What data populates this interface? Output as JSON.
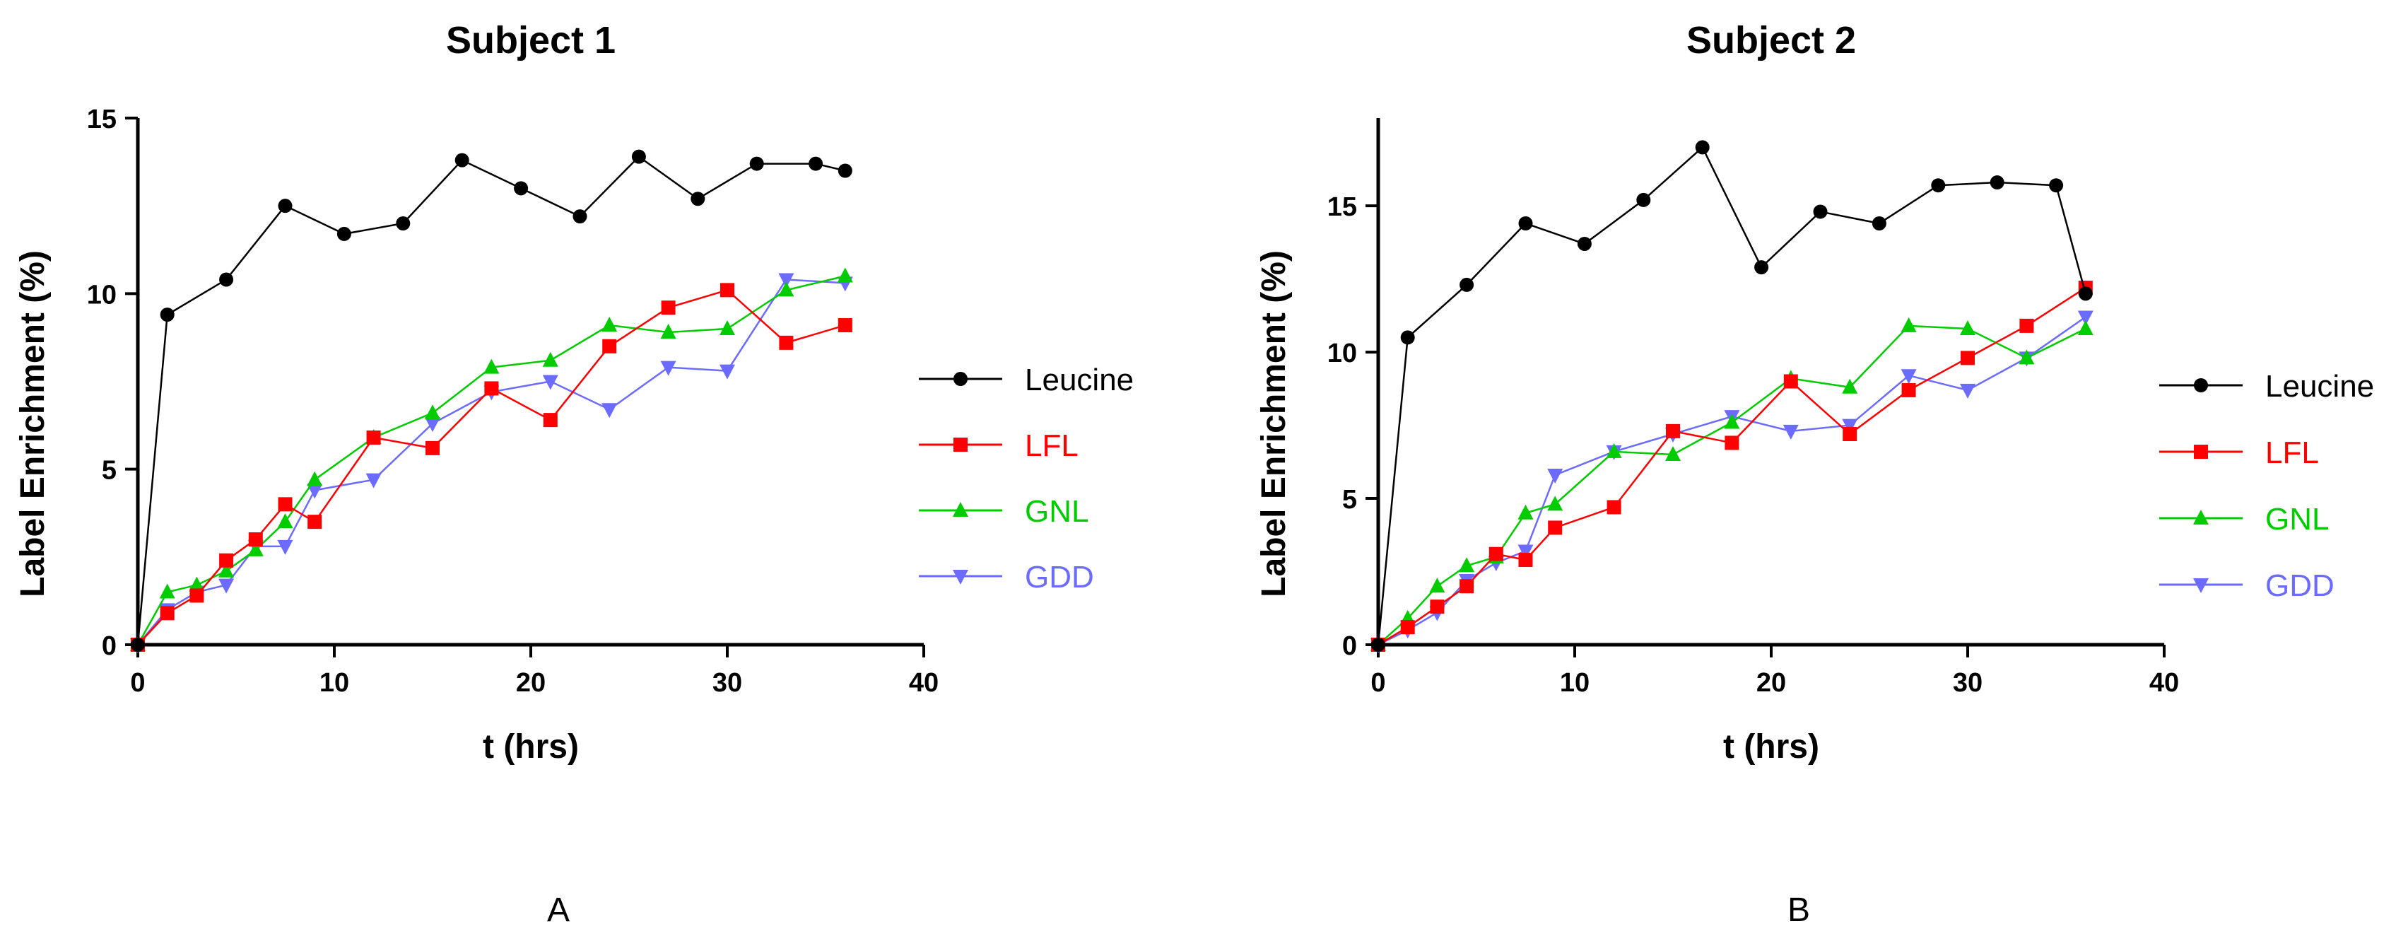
{
  "chart_data": [
    {
      "type": "line",
      "title": "Subject 1",
      "panel_label": "A",
      "xlabel": "t (hrs)",
      "ylabel": "Label Enrichment (%)",
      "xlim": [
        0,
        40
      ],
      "ylim": [
        0,
        15
      ],
      "xticks": [
        0,
        10,
        20,
        30,
        40
      ],
      "yticks": [
        0,
        5,
        10,
        15
      ],
      "xtick_labels": [
        "0",
        "10",
        "20",
        "30",
        "40"
      ],
      "ytick_labels": [
        "0",
        "5",
        "10",
        "15"
      ],
      "legend_position": "right",
      "series": [
        {
          "name": "Leucine",
          "color": "#000000",
          "marker": "circle",
          "x": [
            0,
            1.5,
            4.5,
            7.5,
            10.5,
            13.5,
            16.5,
            19.5,
            22.5,
            25.5,
            28.5,
            31.5,
            34.5,
            36
          ],
          "y": [
            0,
            9.4,
            10.4,
            12.5,
            11.7,
            12.0,
            13.8,
            13.0,
            12.2,
            13.9,
            12.7,
            13.7,
            13.7,
            13.5
          ]
        },
        {
          "name": "LFL",
          "color": "#ff0000",
          "marker": "square",
          "x": [
            0,
            1.5,
            3,
            4.5,
            6,
            7.5,
            9,
            12,
            15,
            18,
            21,
            24,
            27,
            30,
            33,
            36
          ],
          "y": [
            0,
            0.9,
            1.4,
            2.4,
            3.0,
            4.0,
            3.5,
            5.9,
            5.6,
            7.3,
            6.4,
            8.5,
            9.6,
            10.1,
            8.6,
            9.1
          ]
        },
        {
          "name": "GNL",
          "color": "#00cc00",
          "marker": "triangle-up",
          "x": [
            0,
            1.5,
            3,
            4.5,
            6,
            7.5,
            9,
            12,
            15,
            18,
            21,
            24,
            27,
            30,
            33,
            36
          ],
          "y": [
            0,
            1.5,
            1.7,
            2.1,
            2.7,
            3.5,
            4.7,
            5.9,
            6.6,
            7.9,
            8.1,
            9.1,
            8.9,
            9.0,
            10.1,
            10.5
          ]
        },
        {
          "name": "GDD",
          "color": "#6b6bff",
          "marker": "triangle-down",
          "x": [
            0,
            1.5,
            3,
            4.5,
            6,
            7.5,
            9,
            12,
            15,
            18,
            21,
            24,
            27,
            30,
            33,
            36
          ],
          "y": [
            0,
            1.0,
            1.5,
            1.7,
            2.8,
            2.8,
            4.4,
            4.7,
            6.3,
            7.2,
            7.5,
            6.7,
            7.9,
            7.8,
            10.4,
            10.3
          ]
        }
      ]
    },
    {
      "type": "line",
      "title": "Subject 2",
      "panel_label": "B",
      "xlabel": "t (hrs)",
      "ylabel": "Label Enrichment (%)",
      "xlim": [
        0,
        40
      ],
      "ylim": [
        0,
        18
      ],
      "xticks": [
        0,
        10,
        20,
        30,
        40
      ],
      "yticks": [
        0,
        5,
        10,
        15
      ],
      "xtick_labels": [
        "0",
        "10",
        "20",
        "30",
        "40"
      ],
      "ytick_labels": [
        "0",
        "5",
        "10",
        "15"
      ],
      "legend_position": "right",
      "series": [
        {
          "name": "Leucine",
          "color": "#000000",
          "marker": "circle",
          "x": [
            0,
            1.5,
            4.5,
            7.5,
            10.5,
            13.5,
            16.5,
            19.5,
            22.5,
            25.5,
            28.5,
            31.5,
            34.5,
            36
          ],
          "y": [
            0,
            10.5,
            12.3,
            14.4,
            13.7,
            15.2,
            17.0,
            12.9,
            14.8,
            14.4,
            15.7,
            15.8,
            15.7,
            12.0
          ]
        },
        {
          "name": "LFL",
          "color": "#ff0000",
          "marker": "square",
          "x": [
            0,
            1.5,
            3,
            4.5,
            6,
            7.5,
            9,
            12,
            15,
            18,
            21,
            24,
            27,
            30,
            33,
            36
          ],
          "y": [
            0,
            0.6,
            1.3,
            2.0,
            3.1,
            2.9,
            4.0,
            4.7,
            7.3,
            6.9,
            9.0,
            7.2,
            8.7,
            9.8,
            10.9,
            12.2
          ]
        },
        {
          "name": "GNL",
          "color": "#00cc00",
          "marker": "triangle-up",
          "x": [
            0,
            1.5,
            3,
            4.5,
            6,
            7.5,
            9,
            12,
            15,
            18,
            21,
            24,
            27,
            30,
            33,
            36
          ],
          "y": [
            0,
            0.9,
            2.0,
            2.7,
            3.0,
            4.5,
            4.8,
            6.6,
            6.5,
            7.6,
            9.1,
            8.8,
            10.9,
            10.8,
            9.8,
            10.8
          ]
        },
        {
          "name": "GDD",
          "color": "#6b6bff",
          "marker": "triangle-down",
          "x": [
            0,
            1.5,
            3,
            4.5,
            6,
            7.5,
            9,
            12,
            15,
            18,
            21,
            24,
            27,
            30,
            33,
            36
          ],
          "y": [
            0,
            0.5,
            1.1,
            2.2,
            2.8,
            3.2,
            5.8,
            6.6,
            7.2,
            7.8,
            7.3,
            7.5,
            9.2,
            8.7,
            9.8,
            11.2
          ]
        }
      ]
    }
  ]
}
